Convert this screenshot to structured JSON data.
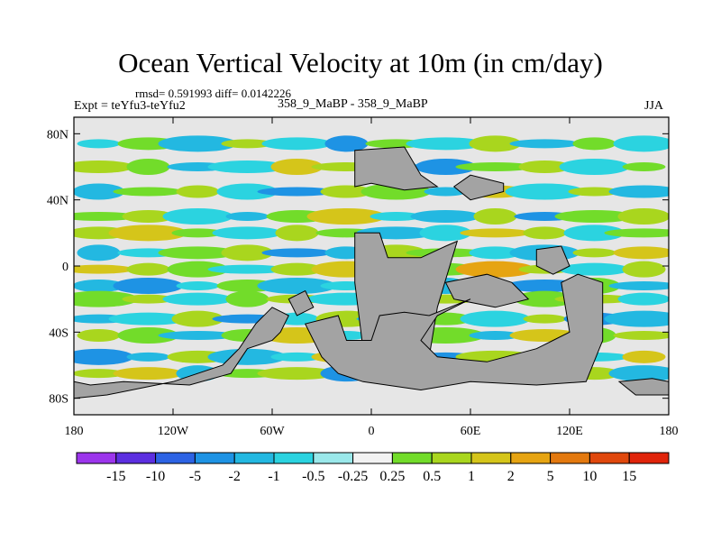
{
  "figure": {
    "title": "Ocean Vertical Velocity at 10m (in cm/day)",
    "stats_line": "rmsd= 0.591993 diff= 0.0142226",
    "experiment": "Expt = teYfu3-teYfu2",
    "runs": "358_9_MaBP - 358_9_MaBP",
    "season": "JJA"
  },
  "chart_data": {
    "type": "heatmap",
    "title": "Ocean Vertical Velocity at 10m (in cm/day)",
    "units": "cm/day",
    "x_axis": {
      "range": [
        -180,
        180
      ],
      "ticks": [
        {
          "value": -180,
          "label": "180"
        },
        {
          "value": -120,
          "label": "120W"
        },
        {
          "value": -60,
          "label": "60W"
        },
        {
          "value": 0,
          "label": "0"
        },
        {
          "value": 60,
          "label": "60E"
        },
        {
          "value": 120,
          "label": "120E"
        },
        {
          "value": 180,
          "label": "180"
        }
      ]
    },
    "y_axis": {
      "range": [
        -90,
        90
      ],
      "ticks": [
        {
          "value": 80,
          "label": "80N"
        },
        {
          "value": 40,
          "label": "40N"
        },
        {
          "value": 0,
          "label": "0"
        },
        {
          "value": -40,
          "label": "40S"
        },
        {
          "value": -80,
          "label": "80S"
        }
      ]
    },
    "colorbar": {
      "labels": [
        "-15",
        "-10",
        "-5",
        "-2",
        "-1",
        "-0.5",
        "-0.25",
        "0.25",
        "0.5",
        "1",
        "2",
        "5",
        "10",
        "15"
      ],
      "colors": [
        "#9c35ec",
        "#5c2fe0",
        "#2d63e4",
        "#1e93e4",
        "#23b8e1",
        "#2bd3e0",
        "#9ae8ea",
        "#f2f2f2",
        "#72dc2a",
        "#a9d61e",
        "#d5c51a",
        "#e6a412",
        "#e3790f",
        "#e0480d",
        "#e0240b"
      ]
    },
    "land_color": "#a3a3a3",
    "missing_color": "#e6e6e6",
    "continents_lonlat": [
      [
        [
          -10,
          20
        ],
        [
          5,
          20
        ],
        [
          10,
          5
        ],
        [
          30,
          5
        ],
        [
          45,
          12
        ],
        [
          52,
          15
        ],
        [
          40,
          -25
        ],
        [
          35,
          -55
        ],
        [
          20,
          -70
        ],
        [
          5,
          -70
        ],
        [
          -5,
          -50
        ],
        [
          -10,
          -10
        ]
      ],
      [
        [
          -10,
          48
        ],
        [
          -10,
          70
        ],
        [
          20,
          72
        ],
        [
          30,
          55
        ],
        [
          40,
          48
        ],
        [
          20,
          46
        ],
        [
          0,
          50
        ]
      ],
      [
        [
          50,
          48
        ],
        [
          60,
          55
        ],
        [
          80,
          50
        ],
        [
          80,
          45
        ],
        [
          60,
          40
        ]
      ],
      [
        [
          45,
          -10
        ],
        [
          70,
          -5
        ],
        [
          85,
          -10
        ],
        [
          95,
          -20
        ],
        [
          75,
          -25
        ],
        [
          50,
          -20
        ]
      ],
      [
        [
          60,
          -20
        ],
        [
          40,
          -30
        ],
        [
          30,
          -45
        ],
        [
          40,
          -55
        ],
        [
          70,
          -58
        ],
        [
          100,
          -50
        ],
        [
          110,
          -45
        ],
        [
          120,
          -40
        ],
        [
          115,
          -10
        ],
        [
          125,
          -5
        ],
        [
          140,
          -10
        ],
        [
          140,
          -45
        ],
        [
          130,
          -70
        ],
        [
          100,
          -72
        ],
        [
          60,
          -70
        ],
        [
          30,
          -75
        ],
        [
          -5,
          -70
        ],
        [
          -20,
          -65
        ],
        [
          -30,
          -55
        ],
        [
          -40,
          -35
        ],
        [
          -20,
          -30
        ],
        [
          -15,
          -45
        ],
        [
          0,
          -45
        ],
        [
          5,
          -30
        ],
        [
          20,
          -28
        ],
        [
          35,
          -30
        ]
      ],
      [
        [
          -180,
          -70
        ],
        [
          -170,
          -72
        ],
        [
          -150,
          -70
        ],
        [
          -110,
          -72
        ],
        [
          -85,
          -65
        ],
        [
          -75,
          -50
        ],
        [
          -60,
          -45
        ],
        [
          -55,
          -40
        ],
        [
          -50,
          -30
        ],
        [
          -60,
          -25
        ],
        [
          -70,
          -35
        ],
        [
          -80,
          -50
        ],
        [
          -90,
          -60
        ],
        [
          -120,
          -70
        ],
        [
          -160,
          -78
        ],
        [
          -180,
          -80
        ]
      ],
      [
        [
          150,
          -70
        ],
        [
          170,
          -68
        ],
        [
          180,
          -70
        ],
        [
          180,
          -78
        ],
        [
          160,
          -78
        ]
      ],
      [
        [
          -50,
          -20
        ],
        [
          -40,
          -15
        ],
        [
          -35,
          -25
        ],
        [
          -45,
          -30
        ]
      ],
      [
        [
          100,
          10
        ],
        [
          115,
          12
        ],
        [
          120,
          0
        ],
        [
          110,
          -5
        ],
        [
          100,
          0
        ]
      ]
    ],
    "anomaly_bands": [
      {
        "lat_center": 74,
        "values": [
          -0.5,
          0.5,
          -1,
          1,
          -0.5,
          -2,
          0.5,
          -0.5,
          1,
          -1,
          0.5,
          -0.5
        ]
      },
      {
        "lat_center": 60,
        "values": [
          1,
          0.5,
          -1,
          -0.5,
          2,
          1,
          -1,
          -2,
          0.5,
          1,
          -0.5,
          0.5
        ]
      },
      {
        "lat_center": 45,
        "values": [
          -1,
          0.5,
          1,
          -0.5,
          -2,
          1,
          0.5,
          -1,
          2,
          -0.5,
          1,
          -1
        ]
      },
      {
        "lat_center": 30,
        "values": [
          0.5,
          1,
          -0.5,
          -1,
          0.5,
          2,
          -0.5,
          -1,
          1,
          -2,
          0.5,
          1
        ]
      },
      {
        "lat_center": 20,
        "values": [
          1,
          2,
          0.5,
          -0.5,
          1,
          0.5,
          -1,
          -0.5,
          2,
          1,
          -0.5,
          0.5
        ]
      },
      {
        "lat_center": 8,
        "values": [
          -1,
          -0.5,
          0.5,
          1,
          -2,
          -1,
          1,
          0.5,
          -0.5,
          -1,
          1,
          2
        ]
      },
      {
        "lat_center": -2,
        "values": [
          2,
          1,
          0.5,
          -0.5,
          1,
          2,
          -1,
          0.5,
          5,
          1,
          -0.5,
          1
        ]
      },
      {
        "lat_center": -12,
        "values": [
          -1,
          -2,
          -0.5,
          0.5,
          -1,
          -0.5,
          1,
          -1,
          -0.5,
          -2,
          0.5,
          -1
        ]
      },
      {
        "lat_center": -20,
        "values": [
          0.5,
          1,
          -0.5,
          0.5,
          1,
          -0.5,
          0.5,
          1,
          -1,
          0.5,
          1,
          -0.5
        ]
      },
      {
        "lat_center": -32,
        "values": [
          -1,
          -0.5,
          1,
          -2,
          -0.5,
          1,
          -1,
          0.5,
          -0.5,
          1,
          -2,
          -1
        ]
      },
      {
        "lat_center": -42,
        "values": [
          1,
          0.5,
          -1,
          0.5,
          2,
          -0.5,
          1,
          0.5,
          -1,
          2,
          0.5,
          1
        ]
      },
      {
        "lat_center": -55,
        "values": [
          -2,
          -1,
          1,
          -1,
          -0.5,
          2,
          -1,
          -2,
          1,
          -1,
          -0.5,
          2
        ]
      },
      {
        "lat_center": -65,
        "values": [
          1,
          2,
          -1,
          0.5,
          1,
          -2,
          0.5,
          1,
          -0.5,
          2,
          1,
          -1
        ]
      }
    ]
  }
}
